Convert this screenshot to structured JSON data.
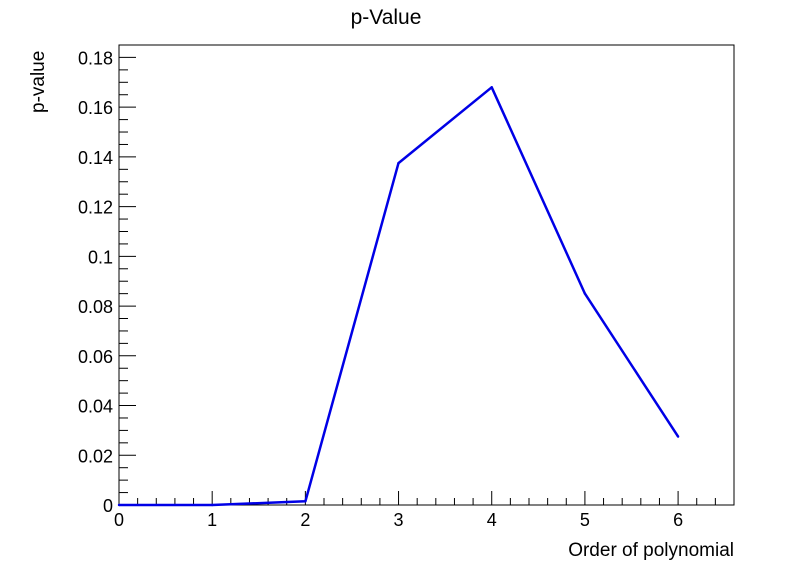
{
  "chart_data": {
    "type": "line",
    "title": "p-Value",
    "xlabel": "Order of polynomial",
    "ylabel": "p-value",
    "xlim": [
      0,
      6.6
    ],
    "ylim": [
      0,
      0.185
    ],
    "x_ticks": [
      0,
      1,
      2,
      3,
      4,
      5,
      6
    ],
    "x_tick_labels": [
      "0",
      "1",
      "2",
      "3",
      "4",
      "5",
      "6"
    ],
    "y_ticks": [
      0,
      0.02,
      0.04,
      0.06,
      0.08,
      0.1,
      0.12,
      0.14,
      0.16,
      0.18
    ],
    "y_tick_labels": [
      "0",
      "0.02",
      "0.04",
      "0.06",
      "0.08",
      "0.1",
      "0.12",
      "0.14",
      "0.16",
      "0.18"
    ],
    "grid": false,
    "series": [
      {
        "color": "#0000e6",
        "x": [
          0,
          1,
          2,
          3,
          4,
          5,
          6
        ],
        "values": [
          0.0,
          0.0,
          0.0015,
          0.1375,
          0.168,
          0.085,
          0.0275
        ]
      }
    ]
  }
}
